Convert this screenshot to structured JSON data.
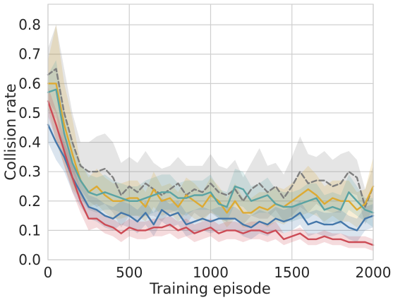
{
  "chart_data": {
    "type": "line",
    "title": "",
    "xlabel": "Training episode",
    "ylabel": "Collision rate",
    "xlim": [
      0,
      2000
    ],
    "ylim": [
      0,
      0.87
    ],
    "xticks": [
      0,
      500,
      1000,
      1500,
      2000
    ],
    "yticks": [
      0.0,
      0.1,
      0.2,
      0.3,
      0.4,
      0.5,
      0.6,
      0.7,
      0.8
    ],
    "xtick_labels": [
      "0",
      "500",
      "1000",
      "1500",
      "2000"
    ],
    "ytick_labels": [
      "0.0",
      "0.1",
      "0.2",
      "0.3",
      "0.4",
      "0.5",
      "0.6",
      "0.7",
      "0.8"
    ],
    "grid": true,
    "legend": "none",
    "x": [
      0,
      50,
      100,
      150,
      200,
      250,
      300,
      350,
      400,
      450,
      500,
      550,
      600,
      650,
      700,
      750,
      800,
      850,
      900,
      950,
      1000,
      1050,
      1100,
      1150,
      1200,
      1250,
      1300,
      1350,
      1400,
      1450,
      1500,
      1550,
      1600,
      1650,
      1700,
      1750,
      1800,
      1850,
      1900,
      1950,
      2000
    ],
    "series": [
      {
        "color": "#7f7f7f",
        "dashed": true,
        "values": [
          0.63,
          0.65,
          0.5,
          0.4,
          0.32,
          0.3,
          0.3,
          0.31,
          0.28,
          0.22,
          0.25,
          0.23,
          0.26,
          0.24,
          0.22,
          0.24,
          0.26,
          0.22,
          0.24,
          0.23,
          0.26,
          0.23,
          0.22,
          0.24,
          0.2,
          0.24,
          0.26,
          0.23,
          0.25,
          0.21,
          0.25,
          0.3,
          0.26,
          0.27,
          0.27,
          0.25,
          0.26,
          0.3,
          0.28,
          0.18,
          0.25
        ],
        "band": [
          0.09,
          0.15,
          0.15,
          0.1,
          0.08,
          0.1,
          0.12,
          0.12,
          0.12,
          0.11,
          0.1,
          0.1,
          0.11,
          0.09,
          0.09,
          0.08,
          0.09,
          0.1,
          0.08,
          0.09,
          0.1,
          0.09,
          0.09,
          0.1,
          0.08,
          0.09,
          0.12,
          0.09,
          0.08,
          0.08,
          0.1,
          0.12,
          0.1,
          0.08,
          0.1,
          0.09,
          0.1,
          0.07,
          0.06,
          0.06,
          0.07
        ]
      },
      {
        "color": "#ddaa33",
        "dashed": false,
        "values": [
          0.6,
          0.6,
          0.46,
          0.36,
          0.27,
          0.23,
          0.25,
          0.22,
          0.2,
          0.2,
          0.21,
          0.21,
          0.18,
          0.24,
          0.2,
          0.21,
          0.18,
          0.22,
          0.2,
          0.18,
          0.22,
          0.2,
          0.16,
          0.2,
          0.16,
          0.16,
          0.18,
          0.17,
          0.19,
          0.18,
          0.2,
          0.22,
          0.24,
          0.22,
          0.19,
          0.21,
          0.2,
          0.2,
          0.17,
          0.19,
          0.25
        ],
        "band": [
          0.08,
          0.2,
          0.14,
          0.12,
          0.06,
          0.05,
          0.06,
          0.06,
          0.06,
          0.06,
          0.06,
          0.06,
          0.05,
          0.06,
          0.05,
          0.05,
          0.05,
          0.06,
          0.06,
          0.05,
          0.06,
          0.05,
          0.05,
          0.06,
          0.05,
          0.05,
          0.05,
          0.06,
          0.06,
          0.06,
          0.06,
          0.07,
          0.08,
          0.07,
          0.06,
          0.06,
          0.07,
          0.07,
          0.06,
          0.05,
          0.1
        ]
      },
      {
        "color": "#5aa3a3",
        "dashed": false,
        "values": [
          0.57,
          0.58,
          0.43,
          0.33,
          0.27,
          0.23,
          0.22,
          0.23,
          0.22,
          0.21,
          0.2,
          0.2,
          0.21,
          0.22,
          0.23,
          0.23,
          0.21,
          0.21,
          0.22,
          0.22,
          0.23,
          0.19,
          0.18,
          0.25,
          0.24,
          0.2,
          0.21,
          0.22,
          0.19,
          0.18,
          0.18,
          0.19,
          0.2,
          0.21,
          0.17,
          0.18,
          0.17,
          0.23,
          0.2,
          0.17,
          0.16
        ],
        "band": [
          0.06,
          0.1,
          0.08,
          0.07,
          0.06,
          0.06,
          0.06,
          0.06,
          0.05,
          0.05,
          0.05,
          0.05,
          0.06,
          0.06,
          0.06,
          0.06,
          0.05,
          0.06,
          0.05,
          0.05,
          0.06,
          0.05,
          0.05,
          0.06,
          0.06,
          0.05,
          0.05,
          0.06,
          0.05,
          0.05,
          0.05,
          0.05,
          0.06,
          0.05,
          0.05,
          0.05,
          0.05,
          0.06,
          0.05,
          0.04,
          0.05
        ]
      },
      {
        "color": "#4477aa",
        "dashed": false,
        "values": [
          0.46,
          0.4,
          0.35,
          0.28,
          0.23,
          0.18,
          0.17,
          0.15,
          0.14,
          0.16,
          0.15,
          0.13,
          0.16,
          0.12,
          0.17,
          0.15,
          0.16,
          0.12,
          0.13,
          0.14,
          0.13,
          0.14,
          0.14,
          0.14,
          0.12,
          0.11,
          0.13,
          0.12,
          0.14,
          0.13,
          0.14,
          0.16,
          0.12,
          0.13,
          0.12,
          0.12,
          0.13,
          0.11,
          0.1,
          0.14,
          0.15
        ],
        "band": [
          0.06,
          0.06,
          0.05,
          0.05,
          0.05,
          0.04,
          0.04,
          0.04,
          0.04,
          0.04,
          0.04,
          0.04,
          0.04,
          0.04,
          0.04,
          0.04,
          0.04,
          0.04,
          0.04,
          0.04,
          0.04,
          0.04,
          0.04,
          0.04,
          0.04,
          0.04,
          0.04,
          0.04,
          0.04,
          0.04,
          0.04,
          0.04,
          0.04,
          0.04,
          0.04,
          0.04,
          0.04,
          0.04,
          0.04,
          0.04,
          0.04
        ]
      },
      {
        "color": "#cc4b55",
        "dashed": false,
        "values": [
          0.54,
          0.46,
          0.37,
          0.28,
          0.2,
          0.14,
          0.14,
          0.12,
          0.11,
          0.09,
          0.11,
          0.1,
          0.1,
          0.11,
          0.11,
          0.12,
          0.1,
          0.11,
          0.09,
          0.1,
          0.11,
          0.09,
          0.1,
          0.1,
          0.09,
          0.1,
          0.1,
          0.09,
          0.1,
          0.07,
          0.08,
          0.09,
          0.07,
          0.07,
          0.08,
          0.07,
          0.07,
          0.06,
          0.06,
          0.06,
          0.05
        ],
        "band": [
          0.05,
          0.05,
          0.05,
          0.05,
          0.04,
          0.04,
          0.03,
          0.03,
          0.03,
          0.03,
          0.03,
          0.03,
          0.03,
          0.03,
          0.03,
          0.03,
          0.03,
          0.03,
          0.03,
          0.03,
          0.03,
          0.03,
          0.03,
          0.03,
          0.03,
          0.03,
          0.03,
          0.03,
          0.03,
          0.02,
          0.02,
          0.02,
          0.02,
          0.02,
          0.02,
          0.02,
          0.02,
          0.02,
          0.02,
          0.02,
          0.02
        ]
      }
    ]
  }
}
